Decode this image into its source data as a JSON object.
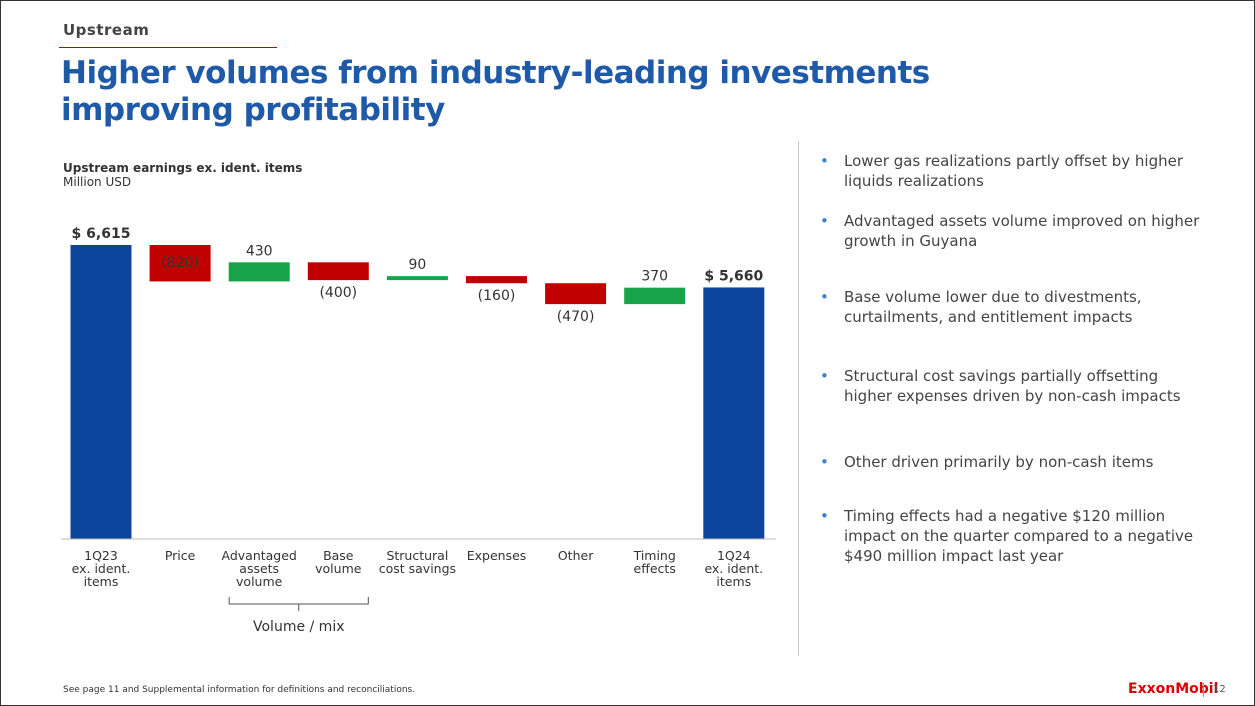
{
  "section": "Upstream",
  "title": "Higher volumes from industry-leading investments improving profitability",
  "chart_data": {
    "type": "waterfall",
    "title": "Upstream earnings ex. ident. items",
    "subtitle": "Million USD",
    "categories": [
      "1Q23\nex. ident.\nitems",
      "Price",
      "Advantaged\nassets\nvolume",
      "Base\nvolume",
      "Structural\ncost savings",
      "Expenses",
      "Other",
      "Timing\neffects",
      "1Q24\nex. ident.\nitems"
    ],
    "values": [
      6615,
      -820,
      430,
      -400,
      90,
      -160,
      -470,
      370,
      5660
    ],
    "value_labels": [
      "$ 6,615",
      "(820)",
      "430",
      "(400)",
      "90",
      "(160)",
      "(470)",
      "370",
      "$ 5,660"
    ],
    "measure": [
      "total",
      "relative",
      "relative",
      "relative",
      "relative",
      "relative",
      "relative",
      "relative",
      "total"
    ],
    "label_positions": [
      "above",
      "inside",
      "above",
      "below",
      "above",
      "below",
      "below",
      "above",
      "above"
    ],
    "colors": {
      "total": "#0d449c",
      "increase": "#16a34a",
      "decrease": "#c00000"
    },
    "group_label": "Volume / mix"
  },
  "bullets": [
    "Lower gas realizations partly offset by higher liquids realizations",
    "Advantaged assets volume improved on higher growth in Guyana",
    "Base volume lower due to divestments, curtailments, and entitlement impacts",
    "Structural cost savings partially offsetting higher expenses driven by non-cash impacts",
    "Other driven primarily by non-cash items",
    "Timing effects had a negative $120 million impact on the quarter compared to a negative $490 million impact last year"
  ],
  "footnote": "See page 11 and Supplemental information for definitions and reconciliations.",
  "logo": "ExxonMobil",
  "page_number": "12"
}
